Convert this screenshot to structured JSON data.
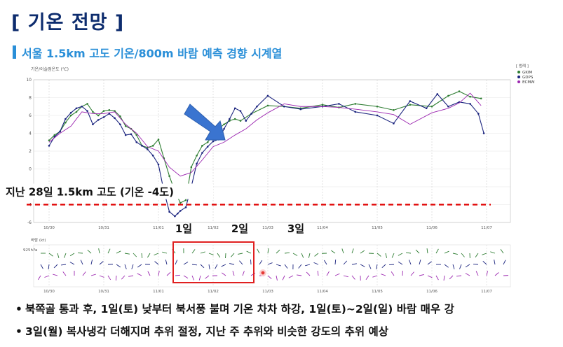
{
  "slide": {
    "title": "[ 기온 전망 ]",
    "subtitle": "서울 1.5km 고도 기온/800m 바람 예측 경향 시계열"
  },
  "colors": {
    "title": "#0d2c6e",
    "subtitle": "#2a8fd8",
    "gkim": "#2e7d32",
    "gdps": "#1a237e",
    "ecmw": "#9c27b0",
    "reference": "#e00000",
    "highlight": "#e02020"
  },
  "annotations": {
    "reference_label": "지난 28일 1.5km 고도 (기온 -4도)",
    "day1": "1일",
    "day2": "2일",
    "day3": "3일"
  },
  "bullets": [
    "북쪽골 통과 후, 1일(토) 낮부터 북서풍 불며 기온 차차 하강, 1일(토)~2일(일) 바람 매우 강",
    "3일(월) 복사냉각 더해지며 추위 절정, 지난 주 추위와 비슷한 강도의 추위 예상"
  ],
  "chart_data": {
    "type": "line",
    "ylabel": "기온/이슬점온도 (℃)",
    "xtick_labels": [
      "10/30",
      "10/31",
      "11/01",
      "11/02",
      "11/03",
      "11/04",
      "11/05",
      "11/06",
      "11/07"
    ],
    "ylim": [
      -6,
      10
    ],
    "yticks": [
      -6,
      -4,
      -2,
      0,
      2,
      4,
      6,
      8,
      10
    ],
    "legend_title": "[ 범례 ]",
    "legend_position": "top-right",
    "grid": true,
    "reference_line": {
      "y": -4
    },
    "series": [
      {
        "name": "GKIM",
        "color": "#2e7d32",
        "x": [
          0,
          0.1,
          0.2,
          0.3,
          0.4,
          0.5,
          0.6,
          0.7,
          0.8,
          0.9,
          1.0,
          1.1,
          1.2,
          1.3,
          1.4,
          1.5,
          1.6,
          1.7,
          1.8,
          1.9,
          2.0,
          2.1,
          2.2,
          2.3,
          2.4,
          2.5,
          2.6,
          2.7,
          2.8,
          2.9,
          3.0,
          3.1,
          3.2,
          3.3,
          3.4,
          3.5,
          3.7,
          4.0,
          4.3,
          4.6,
          5.0,
          5.3,
          5.6,
          6.0,
          6.3,
          6.6,
          7.0,
          7.3,
          7.5,
          7.7,
          7.9
        ],
        "y": [
          3.2,
          3.8,
          4.2,
          5.2,
          6.0,
          6.4,
          7.0,
          7.3,
          6.4,
          6.0,
          6.5,
          6.6,
          6.5,
          5.9,
          4.8,
          4.5,
          3.8,
          2.6,
          2.4,
          2.6,
          3.3,
          1.2,
          -0.8,
          -2.5,
          -3.8,
          -3.5,
          0.2,
          1.5,
          2.6,
          3.0,
          3.8,
          4.5,
          5.0,
          5.4,
          5.6,
          5.4,
          6.2,
          7.1,
          7.0,
          6.8,
          7.2,
          6.9,
          7.3,
          7.0,
          6.6,
          7.2,
          7.0,
          8.2,
          8.7,
          8.1,
          7.9
        ]
      },
      {
        "name": "GDPS",
        "color": "#1a237e",
        "x": [
          0,
          0.1,
          0.2,
          0.3,
          0.4,
          0.5,
          0.6,
          0.7,
          0.8,
          0.9,
          1.0,
          1.1,
          1.2,
          1.3,
          1.4,
          1.5,
          1.6,
          1.7,
          1.8,
          1.9,
          2.0,
          2.1,
          2.2,
          2.3,
          2.35,
          2.4,
          2.5,
          2.6,
          2.7,
          2.8,
          2.9,
          3.0,
          3.1,
          3.2,
          3.3,
          3.4,
          3.5,
          3.6,
          3.7,
          3.8,
          4.0,
          4.3,
          4.6,
          5.0,
          5.3,
          5.6,
          6.0,
          6.3,
          6.6,
          6.9,
          7.1,
          7.3,
          7.5,
          7.7,
          7.85,
          7.95
        ],
        "y": [
          2.6,
          3.6,
          4.2,
          5.6,
          6.3,
          6.8,
          7.0,
          6.5,
          5.0,
          5.5,
          5.8,
          6.2,
          5.7,
          5.0,
          3.8,
          3.9,
          3.0,
          2.6,
          2.2,
          1.5,
          0.5,
          -2.5,
          -4.8,
          -5.3,
          -5.0,
          -4.7,
          -4.3,
          -2.0,
          0.6,
          1.8,
          2.5,
          3.1,
          3.3,
          4.5,
          5.6,
          6.8,
          6.5,
          5.4,
          6.2,
          7.0,
          8.2,
          7.0,
          6.7,
          7.0,
          7.3,
          6.4,
          6.0,
          5.1,
          7.6,
          6.8,
          8.4,
          7.0,
          7.5,
          7.3,
          6.2,
          4.0
        ]
      },
      {
        "name": "ECMW",
        "color": "#9c27b0",
        "x": [
          0,
          0.2,
          0.4,
          0.6,
          0.8,
          1.0,
          1.2,
          1.4,
          1.6,
          1.8,
          2.0,
          2.2,
          2.4,
          2.6,
          2.8,
          3.0,
          3.2,
          3.4,
          3.6,
          3.8,
          4.0,
          4.3,
          4.6,
          5.0,
          5.3,
          5.6,
          6.0,
          6.3,
          6.6,
          7.0,
          7.3,
          7.5,
          7.7,
          7.9
        ],
        "y": [
          3.0,
          4.0,
          4.8,
          6.4,
          6.2,
          6.2,
          6.4,
          5.0,
          4.0,
          2.5,
          2.0,
          0.2,
          -0.8,
          -0.4,
          1.0,
          2.5,
          3.0,
          3.8,
          4.5,
          5.5,
          6.3,
          7.3,
          7.0,
          7.0,
          6.9,
          6.7,
          6.4,
          6.1,
          5.0,
          6.3,
          6.8,
          7.4,
          8.5,
          7.1
        ]
      }
    ]
  }
}
